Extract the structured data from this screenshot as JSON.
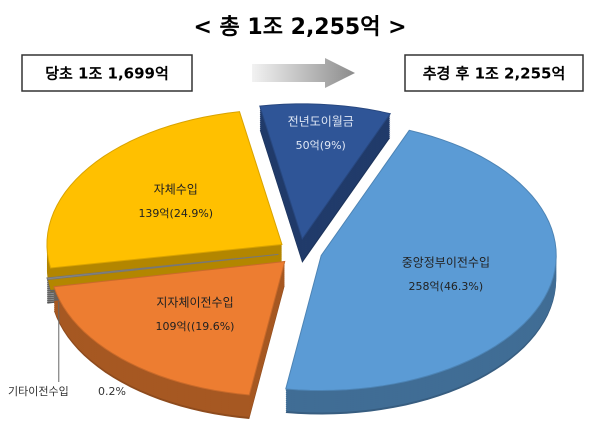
{
  "chart_data": {
    "type": "pie",
    "title": "< 총 1조 2,255억 >",
    "annotations": [
      "당초 1조 1,699억",
      "추경 후 1조 2,255억"
    ],
    "categories": [
      "중앙정부이전수입",
      "지자체이전수입",
      "기타이전수입",
      "자체수입",
      "전년도이월금"
    ],
    "values": [
      46.3,
      19.6,
      0.2,
      24.9,
      9
    ],
    "value_labels": [
      "258억(46.3%)",
      "109억((19.6%)",
      "0.2%",
      "139억(24.9%)",
      "50억(9%)"
    ],
    "colors": [
      "#5b9bd5",
      "#ed7d31",
      "#8c8c8c",
      "#ffc000",
      "#2f5597"
    ]
  }
}
